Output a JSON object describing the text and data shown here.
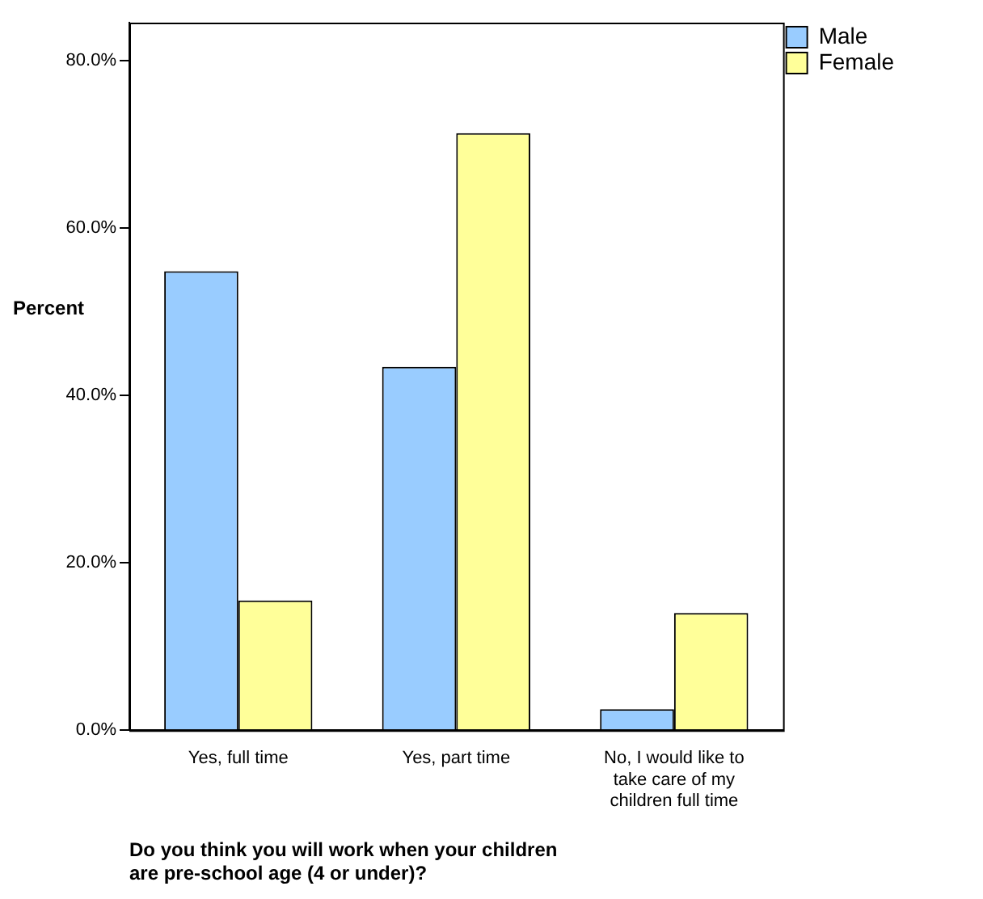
{
  "chart_data": {
    "type": "bar",
    "xlabel": "Do you think you will work when your children are pre-school age (4 or under)?",
    "ylabel": "Percent",
    "categories": [
      "Yes, full time",
      "Yes, part time",
      "No, I would like to take care of my children full time"
    ],
    "series": [
      {
        "name": "Male",
        "color": "#99ccff",
        "values": [
          54.8,
          43.4,
          2.5
        ]
      },
      {
        "name": "Female",
        "color": "#ffff99",
        "values": [
          15.5,
          71.3,
          14.0
        ]
      }
    ],
    "ylim": [
      0,
      84.5
    ],
    "yticks": [
      {
        "value": 0,
        "label": "0.0%"
      },
      {
        "value": 20,
        "label": "20.0%"
      },
      {
        "value": 40,
        "label": "40.0%"
      },
      {
        "value": 60,
        "label": "60.0%"
      },
      {
        "value": 80,
        "label": "80.0%"
      }
    ],
    "grid": false,
    "legend": "top right"
  }
}
